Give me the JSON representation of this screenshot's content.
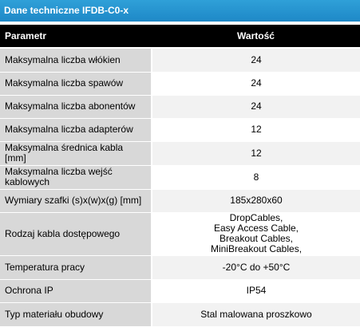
{
  "title": "Dane techniczne IFDB-C0-x",
  "table": {
    "headers": [
      "Parametr",
      "Wartość"
    ],
    "rows": [
      {
        "label": "Maksymalna liczba włókien",
        "value": "24"
      },
      {
        "label": "Maksymalna liczba spawów",
        "value": "24"
      },
      {
        "label": "Maksymalna liczba abonentów",
        "value": "24"
      },
      {
        "label": "Maksymalna liczba adapterów",
        "value": "12"
      },
      {
        "label": "Maksymalna średnica kabla [mm]",
        "value": "12"
      },
      {
        "label": "Maksymalna liczba wejść kablowych",
        "value": "8"
      },
      {
        "label": "Wymiary szafki (s)x(w)x(g) [mm]",
        "value": "185x280x60"
      },
      {
        "label": "Rodzaj kabla dostępowego",
        "values": [
          "DropCables,",
          "Easy Access Cable,",
          "Breakout Cables,",
          "MiniBreakout Cables,"
        ]
      },
      {
        "label": "Temperatura pracy",
        "value": "-20°C do +50°C"
      },
      {
        "label": "Ochrona IP",
        "value": "IP54"
      },
      {
        "label": "Typ materiału obudowy",
        "value": "Stal malowana proszkowo"
      }
    ]
  },
  "colors": {
    "title_bar": "#1e88c7",
    "header_bg": "#000000",
    "label_bg": "#d8d8d8",
    "value_bg_alt": "#f2f2f2"
  }
}
